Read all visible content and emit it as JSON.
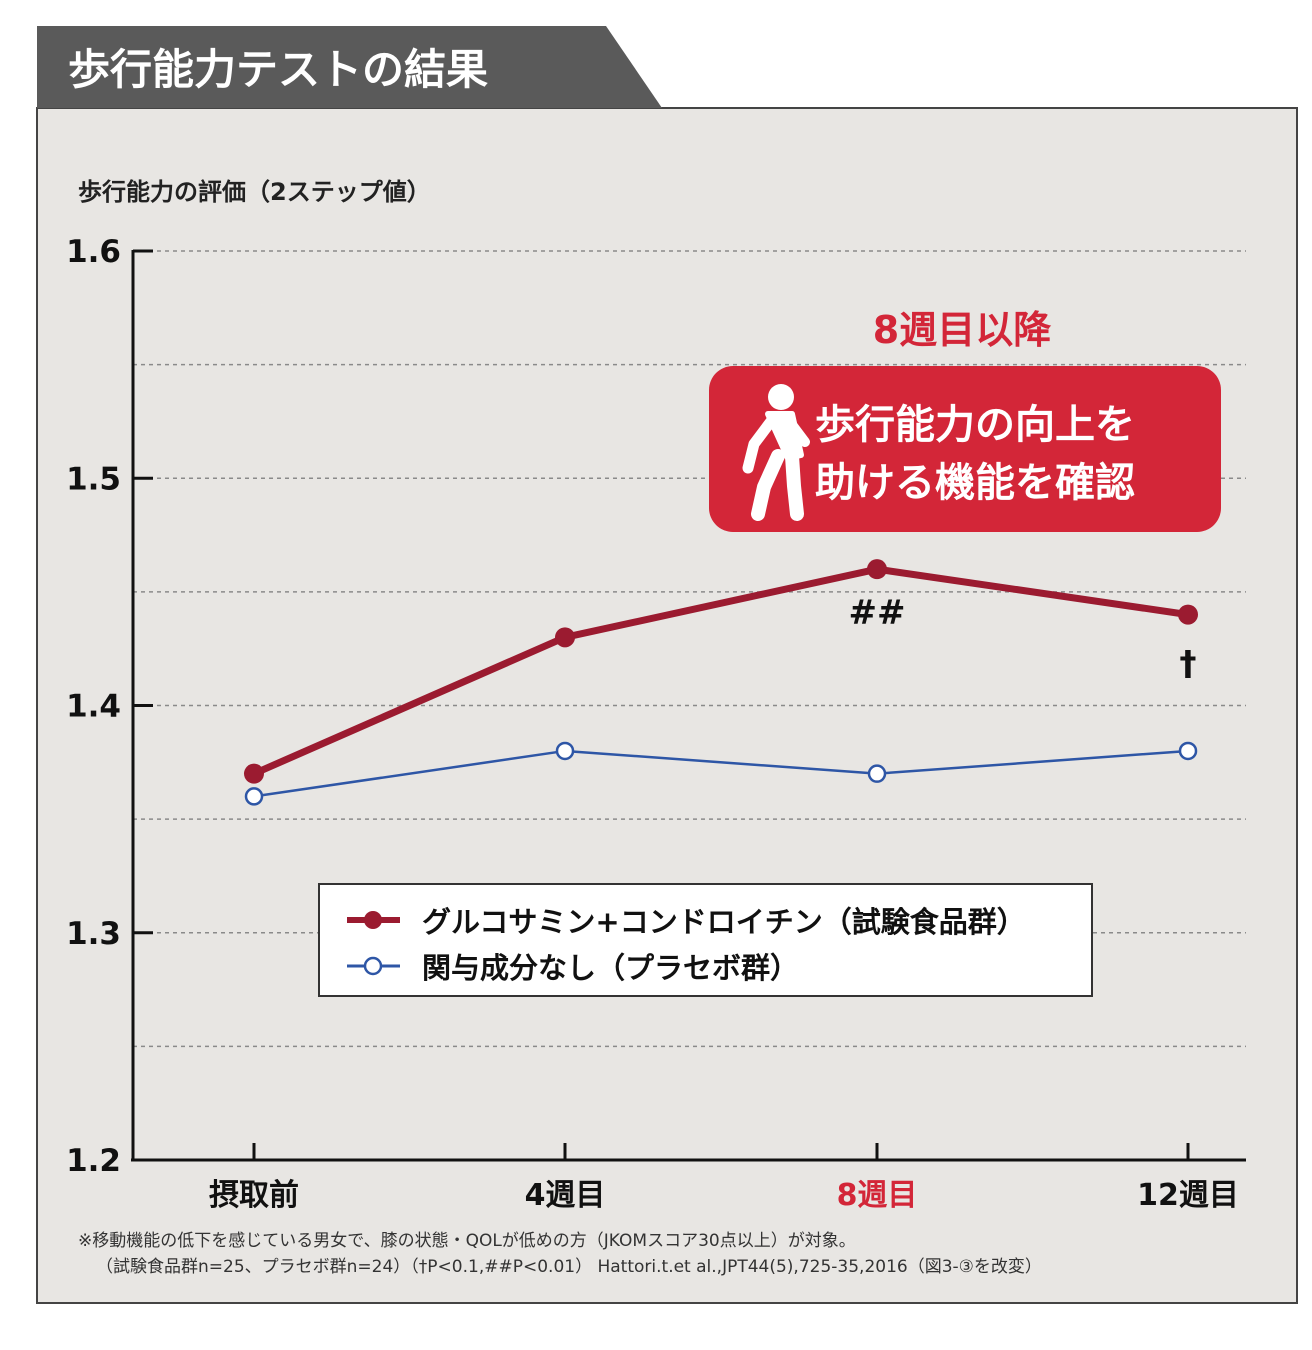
{
  "header": {
    "title": "歩行能力テストの結果"
  },
  "callout": {
    "heading": "8週目以降",
    "line1": "歩行能力の向上を",
    "line2": "助ける機能を確認",
    "icon": "walking-person-icon"
  },
  "notes": {
    "line1": "※移動機能の低下を感じている男女で、膝の状態・QOLが低めの方（JKOMスコア30点以上）が対象。",
    "line2": "（試験食品群n=25、プラセボ群n=24）（†P<0.1,##P<0.01）  Hattori.t.et al.,JPT44(5),725-35,2016（図3-③を改変）"
  },
  "colors": {
    "accent": "#d32638",
    "test_series": "#9b1b30",
    "placebo_series": "#2e56a6",
    "banner": "#5a5a5a",
    "panel": "#e8e6e3"
  },
  "chart_data": {
    "type": "line",
    "ylabel": "歩行能力の評価（2ステップ値）",
    "xlabel": "",
    "categories": [
      "摂取前",
      "4週目",
      "8週目",
      "12週目"
    ],
    "highlight_category": "8週目",
    "ylim": [
      1.2,
      1.6
    ],
    "yticks": [
      "1.2",
      "1.3",
      "1.4",
      "1.5",
      "1.6"
    ],
    "grid": "dashed, every 0.05",
    "legend_position": "center",
    "series": [
      {
        "name": "グルコサミン+コンドロイチン（試験食品群）",
        "values": [
          1.37,
          1.43,
          1.46,
          1.44
        ],
        "marker": "filled-circle"
      },
      {
        "name": "関与成分なし（プラセボ群）",
        "values": [
          1.36,
          1.38,
          1.37,
          1.38
        ],
        "marker": "open-circle"
      }
    ],
    "annotations": [
      {
        "category": "8週目",
        "text": "##"
      },
      {
        "category": "12週目",
        "text": "†"
      }
    ]
  }
}
